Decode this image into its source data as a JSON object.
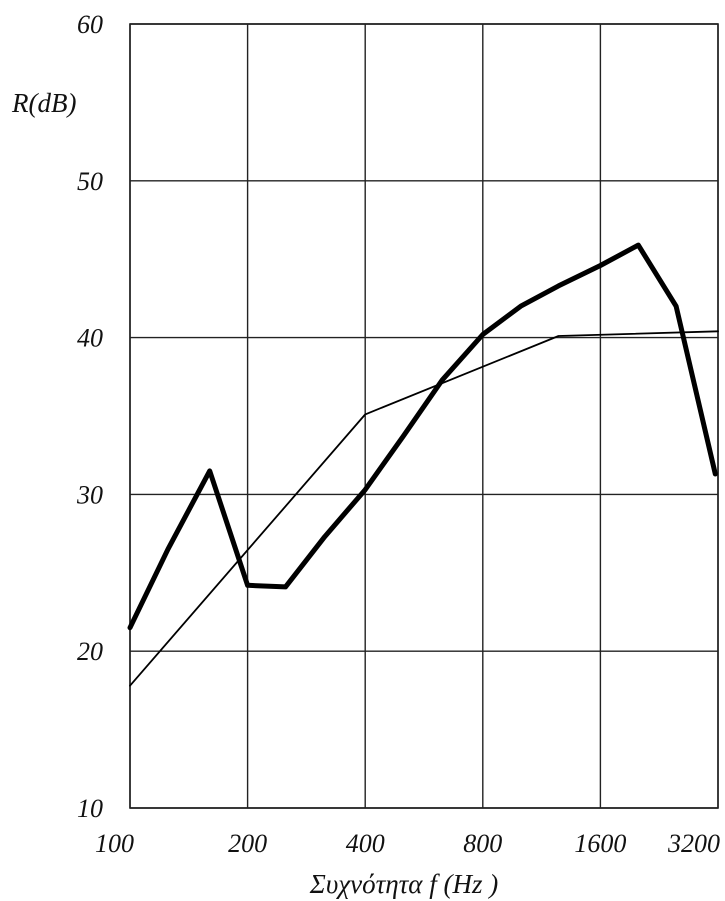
{
  "chart_data": {
    "type": "line",
    "ylabel": "R(dB)",
    "xlabel": "Συχνότητα  f (Hz )",
    "x_scale": "log2",
    "x_ticks": [
      100,
      200,
      400,
      800,
      1600,
      3200
    ],
    "x_tick_labels": [
      "100",
      "200",
      "400",
      "800",
      "1600",
      "3200"
    ],
    "xlim": [
      100,
      3200
    ],
    "ylim": [
      10,
      60
    ],
    "y_ticks": [
      10,
      20,
      30,
      40,
      50,
      60
    ],
    "y_tick_labels": [
      "10",
      "20",
      "30",
      "40",
      "50",
      "60"
    ],
    "grid": true,
    "series": [
      {
        "style": "thick",
        "color": "#000000",
        "points": [
          [
            100,
            21.5
          ],
          [
            125,
            26.5
          ],
          [
            160,
            31.5
          ],
          [
            200,
            24.2
          ],
          [
            250,
            24.1
          ],
          [
            315,
            27.3
          ],
          [
            400,
            30.3
          ],
          [
            500,
            33.7
          ],
          [
            630,
            37.3
          ],
          [
            800,
            40.2
          ],
          [
            1000,
            42.0
          ],
          [
            1250,
            43.3
          ],
          [
            1600,
            44.6
          ],
          [
            2000,
            45.9
          ],
          [
            2500,
            42.0
          ],
          [
            3150,
            31.3
          ]
        ]
      },
      {
        "style": "thin",
        "color": "#000000",
        "points": [
          [
            100,
            17.8
          ],
          [
            400,
            35.1
          ],
          [
            1250,
            40.1
          ],
          [
            3200,
            40.4
          ]
        ]
      }
    ]
  }
}
